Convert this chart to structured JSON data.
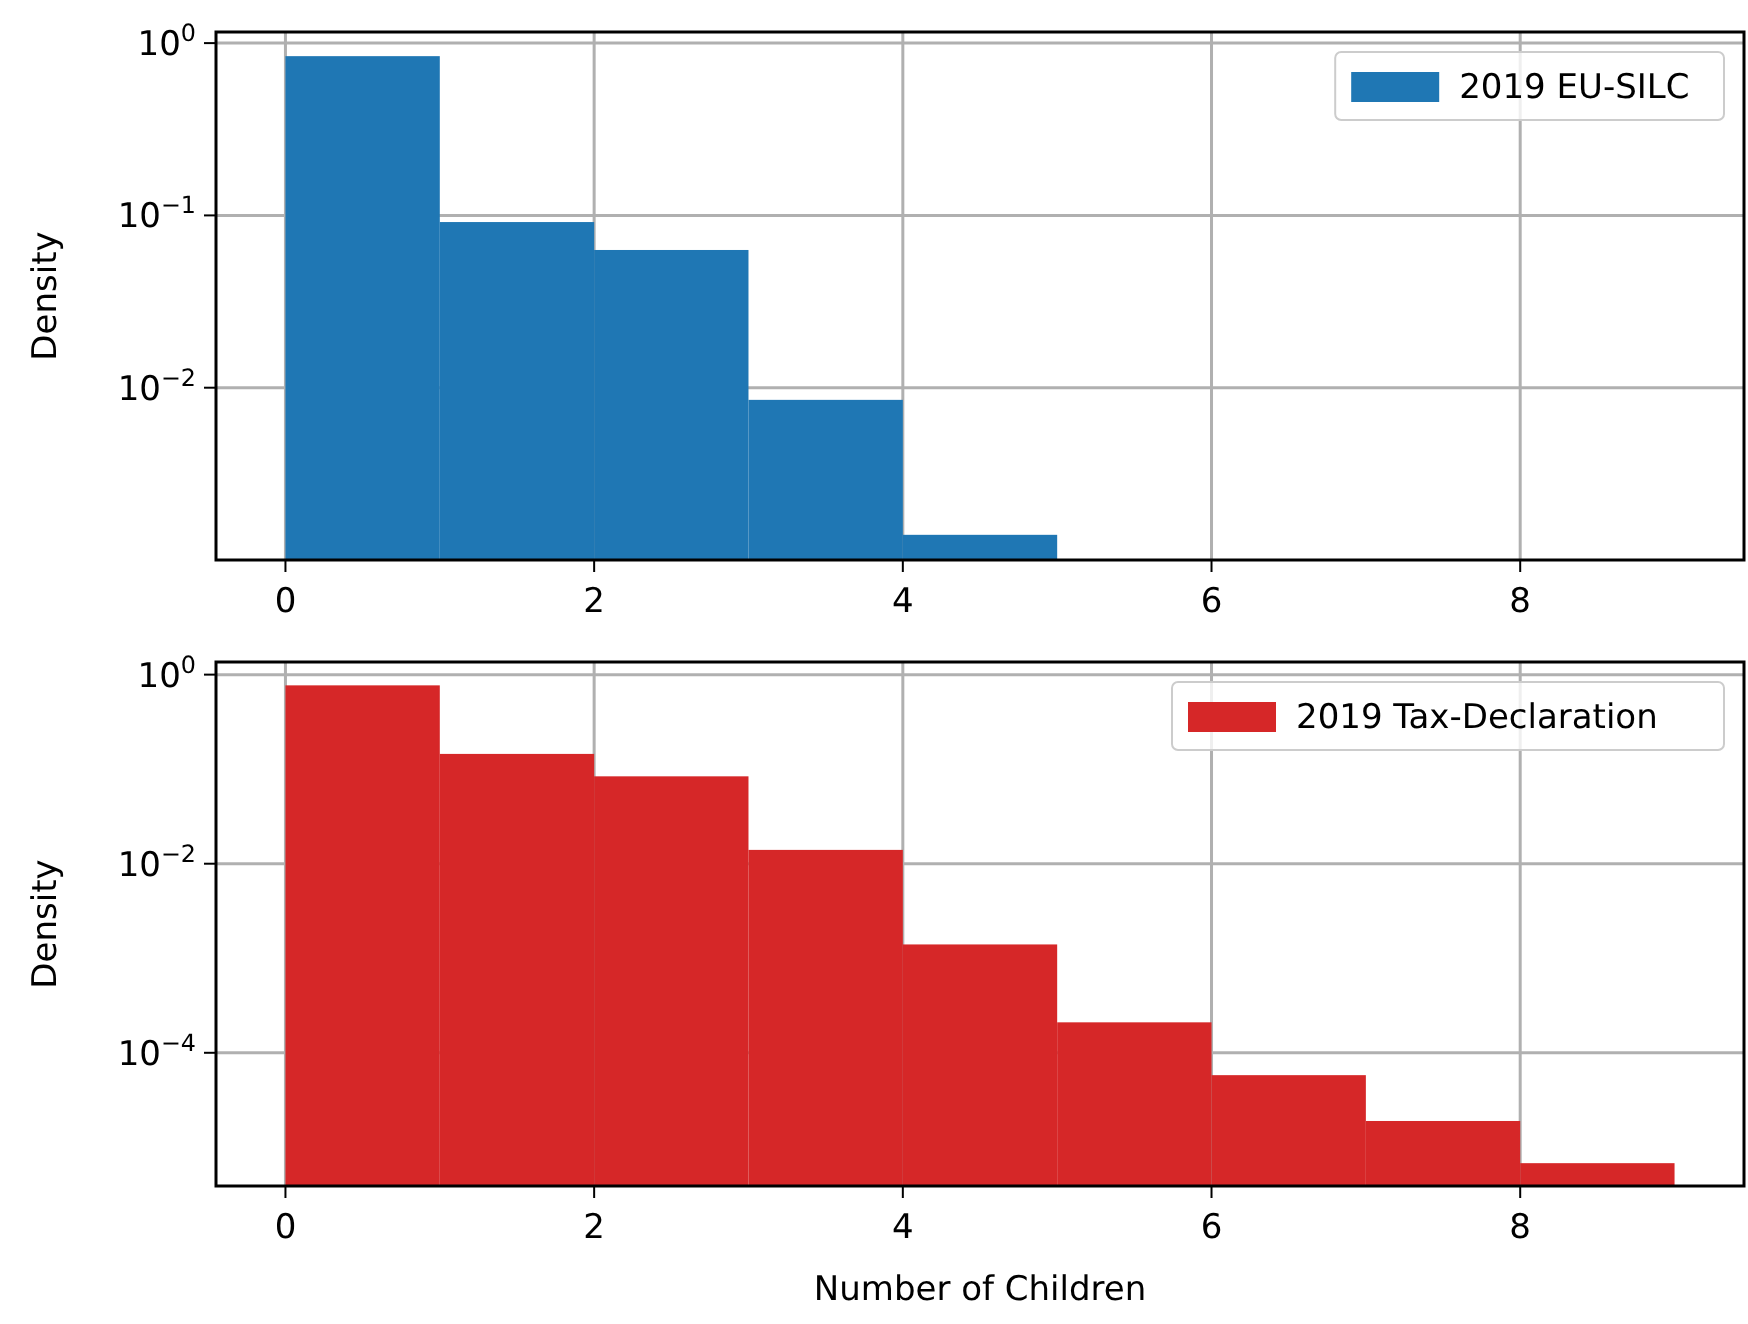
{
  "chart_data": [
    {
      "type": "histogram",
      "ylabel": "Density",
      "bins": [
        0,
        1,
        2,
        3,
        4,
        5
      ],
      "series": [
        {
          "name": "2019 EU-SILC",
          "color": "#1f77b4",
          "values": [
            0.84,
            0.0915,
            0.063,
            0.0085,
            0.0014
          ]
        }
      ],
      "xlim": [
        -0.45,
        9.45
      ],
      "xticks": [
        0,
        2,
        4,
        6,
        8
      ],
      "ylim": [
        0.001,
        1.16
      ],
      "yticks": [
        {
          "value": 1,
          "label": "10$^{0}$"
        },
        {
          "value": 0.1,
          "label": "10$^{−1}$"
        },
        {
          "value": 0.01,
          "label": "10$^{−2}$"
        }
      ],
      "log": "y",
      "grid": true,
      "legend": "top right"
    },
    {
      "type": "histogram",
      "ylabel": "Density",
      "xlabel": "Number of Children",
      "bins": [
        0,
        1,
        2,
        3,
        4,
        5,
        6,
        7,
        8,
        9
      ],
      "series": [
        {
          "name": "2019 Tax-Declaration",
          "color": "#d62728",
          "values": [
            0.77,
            0.145,
            0.084,
            0.014,
            0.0014,
            0.00021,
            5.8e-05,
            1.9e-05,
            6.8e-06
          ]
        }
      ],
      "xlim": [
        -0.45,
        9.45
      ],
      "xticks": [
        0,
        2,
        4,
        6,
        8
      ],
      "ylim": [
        3.9e-06,
        1.36
      ],
      "yticks": [
        {
          "value": 1,
          "label": "10$^{0}$"
        },
        {
          "value": 0.01,
          "label": "10$^{−2}$"
        },
        {
          "value": 0.0001,
          "label": "10$^{−4}$"
        }
      ],
      "log": "y",
      "grid": true,
      "legend": "top right"
    }
  ]
}
